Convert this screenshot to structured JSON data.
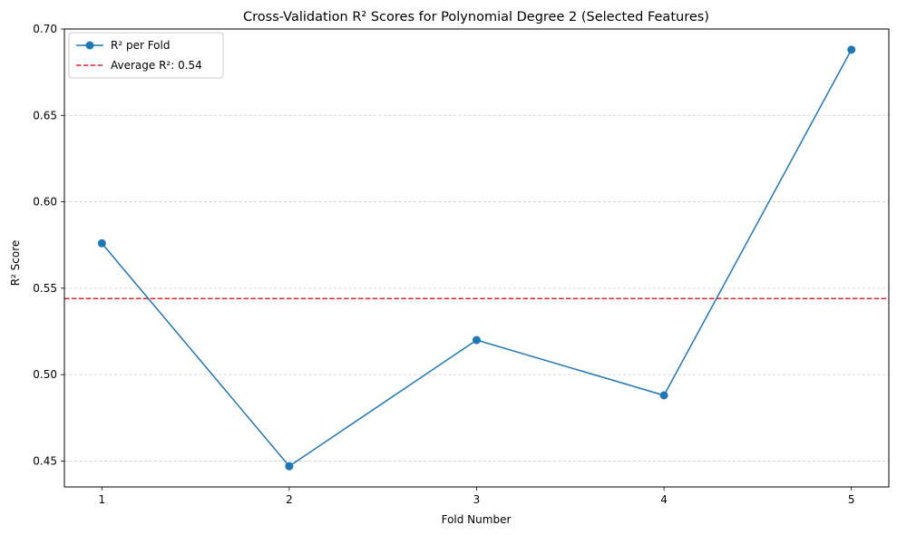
{
  "chart_data": {
    "type": "line",
    "title": "Cross-Validation R² Scores for Polynomial Degree 2 (Selected Features)",
    "xlabel": "Fold Number",
    "ylabel": "R² Score",
    "x": [
      1,
      2,
      3,
      4,
      5
    ],
    "x_tick_labels": [
      "1",
      "2",
      "3",
      "4",
      "5"
    ],
    "series": [
      {
        "name": "R² per Fold",
        "values": [
          0.576,
          0.447,
          0.52,
          0.488,
          0.688
        ],
        "color": "#1f77b4",
        "marker": "circle"
      }
    ],
    "reference_line": {
      "name": "Average R²: 0.54",
      "value": 0.544,
      "color": "#d62728",
      "style": "dashed"
    },
    "xlim": [
      0.8,
      5.2
    ],
    "ylim": [
      0.435,
      0.7
    ],
    "y_ticks": [
      0.45,
      0.5,
      0.55,
      0.6,
      0.65,
      0.7
    ],
    "y_tick_labels": [
      "0.45",
      "0.50",
      "0.55",
      "0.60",
      "0.65",
      "0.70"
    ],
    "grid": "y-dashed",
    "legend_position": "top-left"
  }
}
